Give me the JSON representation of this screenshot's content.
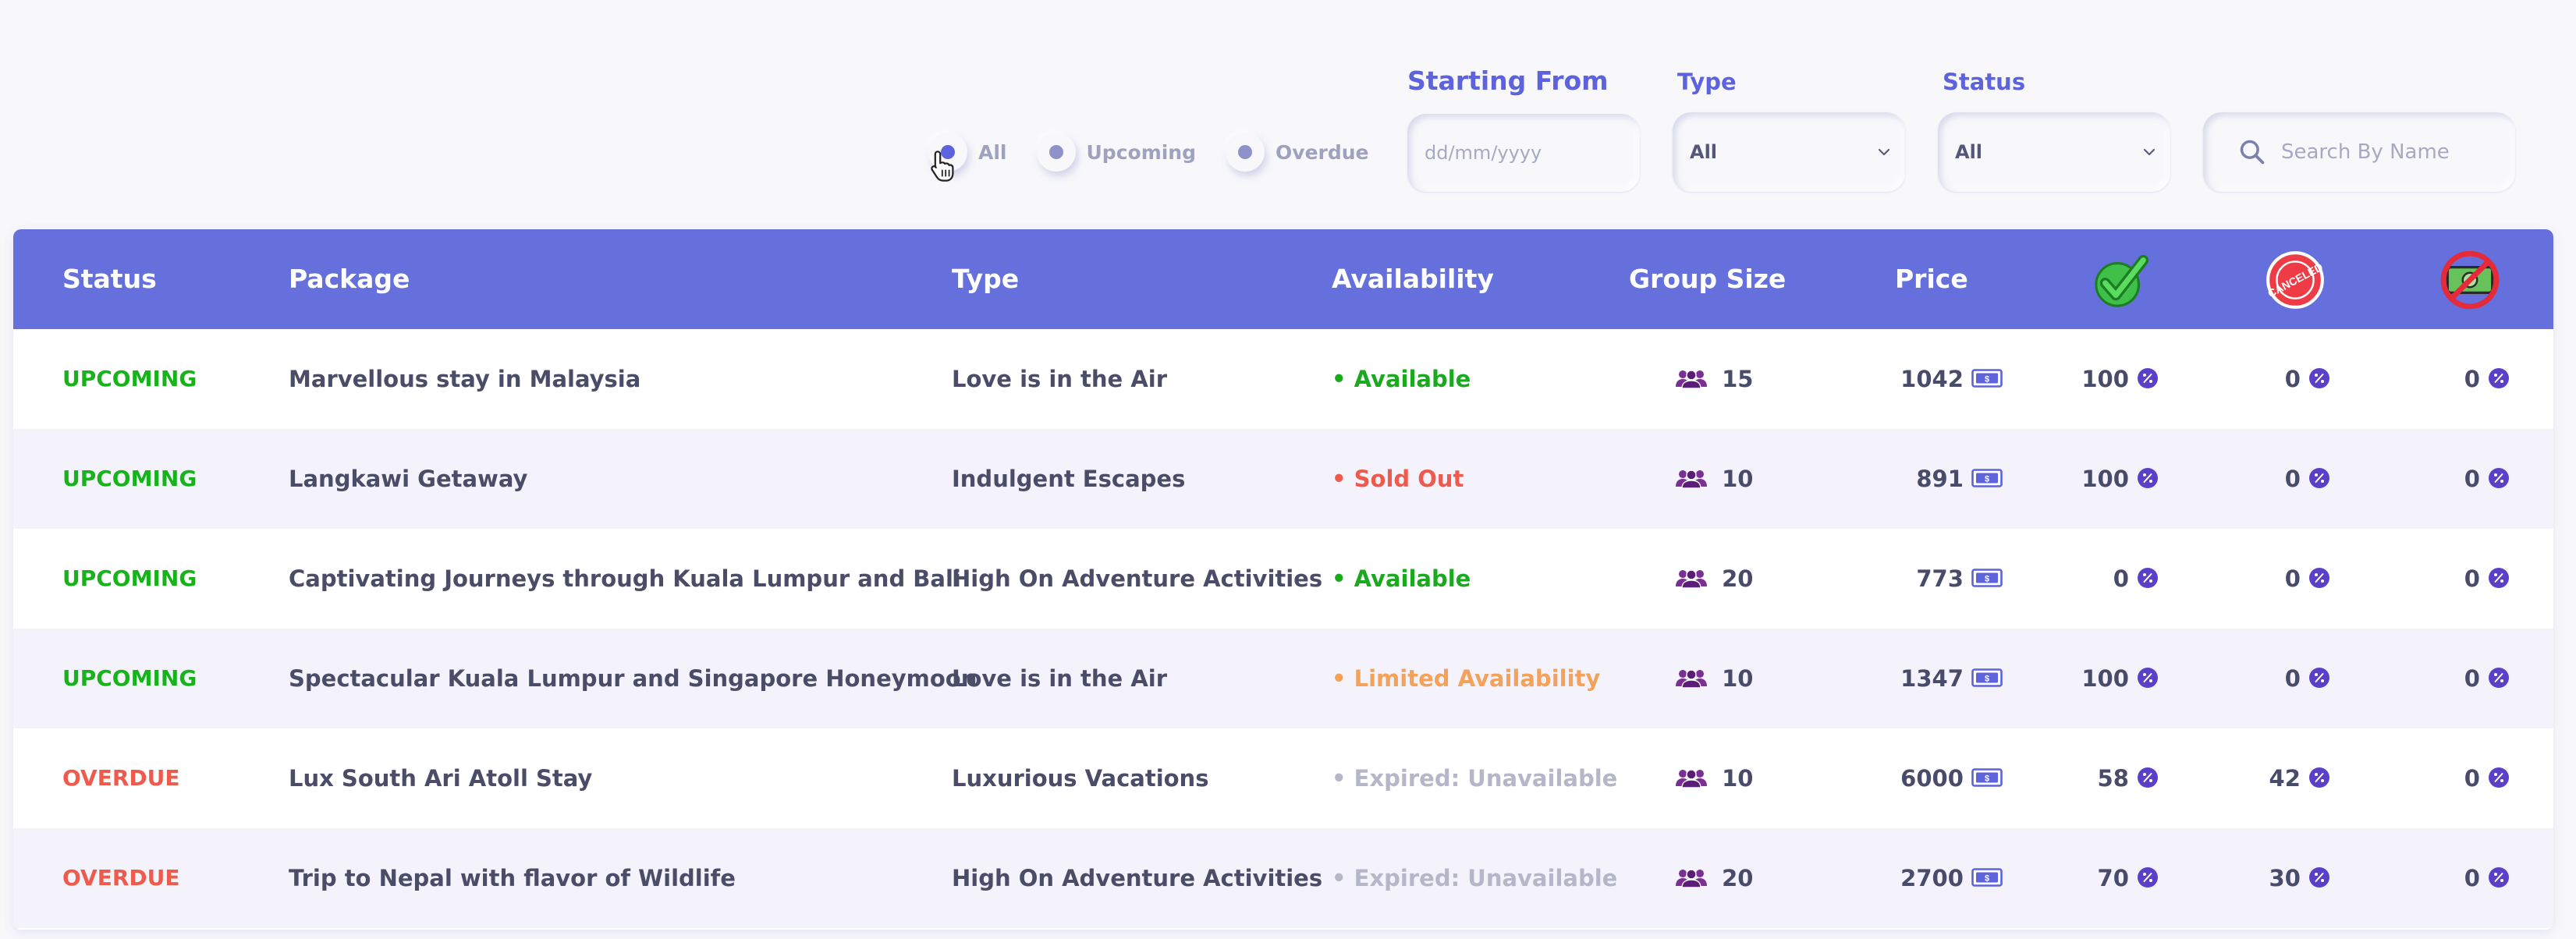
{
  "filters": {
    "radios": [
      {
        "label": "All",
        "selected": true
      },
      {
        "label": "Upcoming",
        "selected": false
      },
      {
        "label": "Overdue",
        "selected": false
      }
    ],
    "starting_from": {
      "label": "Starting From",
      "placeholder": "dd/mm/yyyy"
    },
    "type": {
      "label": "Type",
      "value": "All"
    },
    "status": {
      "label": "Status",
      "value": "All"
    },
    "search": {
      "placeholder": "Search By Name"
    }
  },
  "table": {
    "headers": {
      "status": "Status",
      "package": "Package",
      "type": "Type",
      "availability": "Availability",
      "group_size": "Group Size",
      "price": "Price"
    },
    "header_icons": [
      "check-icon",
      "cancelled-icon",
      "no-money-icon"
    ],
    "rows": [
      {
        "status": "UPCOMING",
        "status_kind": "upcoming",
        "package": "Marvellous stay in Malaysia",
        "type": "Love is in the Air",
        "availability": "• Available",
        "availability_kind": "available",
        "group_size": "15",
        "price": "1042",
        "completed": "100",
        "cancelled": "0",
        "refunded": "0"
      },
      {
        "status": "UPCOMING",
        "status_kind": "upcoming",
        "package": "Langkawi Getaway",
        "type": "Indulgent Escapes",
        "availability": "• Sold Out",
        "availability_kind": "soldout",
        "group_size": "10",
        "price": "891",
        "completed": "100",
        "cancelled": "0",
        "refunded": "0"
      },
      {
        "status": "UPCOMING",
        "status_kind": "upcoming",
        "package": "Captivating Journeys through Kuala Lumpur and Bali",
        "type": "High On Adventure Activities",
        "availability": "• Available",
        "availability_kind": "available",
        "group_size": "20",
        "price": "773",
        "completed": "0",
        "cancelled": "0",
        "refunded": "0"
      },
      {
        "status": "UPCOMING",
        "status_kind": "upcoming",
        "package": "Spectacular Kuala Lumpur and Singapore Honeymoon",
        "type": "Love is in the Air",
        "availability": "• Limited Availability",
        "availability_kind": "limited",
        "group_size": "10",
        "price": "1347",
        "completed": "100",
        "cancelled": "0",
        "refunded": "0"
      },
      {
        "status": "OVERDUE",
        "status_kind": "overdue",
        "package": "Lux South Ari Atoll Stay",
        "type": "Luxurious Vacations",
        "availability": "• Expired: Unavailable",
        "availability_kind": "expired",
        "group_size": "10",
        "price": "6000",
        "completed": "58",
        "cancelled": "42",
        "refunded": "0"
      },
      {
        "status": "OVERDUE",
        "status_kind": "overdue",
        "package": "Trip to Nepal with flavor of Wildlife",
        "type": "High On Adventure Activities",
        "availability": "• Expired: Unavailable",
        "availability_kind": "expired",
        "group_size": "20",
        "price": "2700",
        "completed": "70",
        "cancelled": "30",
        "refunded": "0"
      }
    ]
  },
  "colors": {
    "accent": "#5c63dc",
    "header_bg": "#6570dc",
    "upcoming": "#16b31b",
    "overdue": "#ee5b4d",
    "limited": "#f4a15a",
    "expired": "#b5b6c8"
  }
}
